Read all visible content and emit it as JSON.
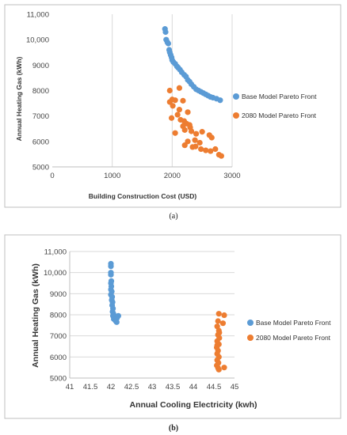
{
  "colors": {
    "base_series": "#5B9BD5",
    "future_series": "#ED7D31",
    "grid": "#d9d9d9",
    "frame": "#bfbfbf"
  },
  "chart_data": [
    {
      "type": "scatter",
      "caption": "(a)",
      "xlabel": "Building Construction Cost (USD)",
      "ylabel": "Annual Heating Gas (kWh)",
      "xlim": [
        0,
        3000
      ],
      "ylim": [
        5000,
        11000
      ],
      "xticks": [
        "0",
        "1000",
        "2000",
        "3000"
      ],
      "yticks": [
        "5000",
        "6000",
        "7000",
        "8000",
        "9000",
        "10,000",
        "11,000"
      ],
      "grid": "vertical",
      "legend": "right",
      "series": [
        {
          "name": "Base Model Pareto Front",
          "color": "#5B9BD5",
          "points": [
            [
              1880,
              10420
            ],
            [
              1890,
              10300
            ],
            [
              1900,
              10000
            ],
            [
              1920,
              9900
            ],
            [
              1935,
              9850
            ],
            [
              1950,
              9600
            ],
            [
              1960,
              9500
            ],
            [
              1975,
              9400
            ],
            [
              1990,
              9300
            ],
            [
              2000,
              9200
            ],
            [
              2020,
              9120
            ],
            [
              2050,
              9050
            ],
            [
              2080,
              8950
            ],
            [
              2100,
              8900
            ],
            [
              2130,
              8820
            ],
            [
              2160,
              8720
            ],
            [
              2200,
              8620
            ],
            [
              2230,
              8550
            ],
            [
              2260,
              8420
            ],
            [
              2290,
              8350
            ],
            [
              2320,
              8250
            ],
            [
              2360,
              8150
            ],
            [
              2400,
              8050
            ],
            [
              2440,
              8000
            ],
            [
              2480,
              7950
            ],
            [
              2520,
              7900
            ],
            [
              2560,
              7850
            ],
            [
              2600,
              7800
            ],
            [
              2640,
              7750
            ],
            [
              2680,
              7720
            ],
            [
              2740,
              7680
            ],
            [
              2800,
              7620
            ]
          ]
        },
        {
          "name": "2080 Model Pareto Front",
          "color": "#ED7D31",
          "points": [
            [
              1960,
              8000
            ],
            [
              2120,
              8100
            ],
            [
              1960,
              7550
            ],
            [
              2000,
              7650
            ],
            [
              2050,
              7620
            ],
            [
              2180,
              7600
            ],
            [
              2010,
              7400
            ],
            [
              2120,
              7250
            ],
            [
              2260,
              7150
            ],
            [
              2090,
              7050
            ],
            [
              1990,
              6920
            ],
            [
              2140,
              6850
            ],
            [
              2200,
              6800
            ],
            [
              2240,
              6700
            ],
            [
              2180,
              6600
            ],
            [
              2290,
              6650
            ],
            [
              2300,
              6550
            ],
            [
              2050,
              6330
            ],
            [
              2210,
              6450
            ],
            [
              2320,
              6400
            ],
            [
              2400,
              6300
            ],
            [
              2500,
              6380
            ],
            [
              2620,
              6250
            ],
            [
              2660,
              6150
            ],
            [
              2260,
              6000
            ],
            [
              2380,
              6050
            ],
            [
              2460,
              5950
            ],
            [
              2210,
              5850
            ],
            [
              2340,
              5780
            ],
            [
              2390,
              5800
            ],
            [
              2480,
              5700
            ],
            [
              2560,
              5650
            ],
            [
              2640,
              5620
            ],
            [
              2720,
              5700
            ],
            [
              2780,
              5480
            ],
            [
              2820,
              5430
            ]
          ]
        }
      ]
    },
    {
      "type": "scatter",
      "caption": "(b)",
      "xlabel": "Annual Cooling Electricity (kwh)",
      "ylabel": "Annual Heating Gas (kWh)",
      "xlim": [
        41,
        45
      ],
      "ylim": [
        5000,
        11000
      ],
      "xticks": [
        "41",
        "41.5",
        "42",
        "42.5",
        "43",
        "43.5",
        "44",
        "44.5",
        "45"
      ],
      "yticks": [
        "5000",
        "6000",
        "7000",
        "8000",
        "9000",
        "10,000",
        "11,000"
      ],
      "grid": "horizontal",
      "legend": "right",
      "series": [
        {
          "name": "Base Model Pareto Front",
          "color": "#5B9BD5",
          "points": [
            [
              42.0,
              10420
            ],
            [
              42.0,
              10300
            ],
            [
              42.0,
              10000
            ],
            [
              42.0,
              9900
            ],
            [
              42.01,
              9600
            ],
            [
              42.0,
              9500
            ],
            [
              42.01,
              9350
            ],
            [
              42.0,
              9200
            ],
            [
              42.02,
              9100
            ],
            [
              42.0,
              8950
            ],
            [
              42.03,
              8850
            ],
            [
              42.02,
              8700
            ],
            [
              42.04,
              8600
            ],
            [
              42.03,
              8450
            ],
            [
              42.05,
              8300
            ],
            [
              42.04,
              8150
            ],
            [
              42.06,
              8050
            ],
            [
              42.05,
              7950
            ],
            [
              42.08,
              7900
            ],
            [
              42.07,
              7800
            ],
            [
              42.1,
              7750
            ],
            [
              42.12,
              7700
            ],
            [
              42.15,
              7850
            ],
            [
              42.18,
              7950
            ],
            [
              42.14,
              7650
            ]
          ]
        },
        {
          "name": "2080 Model Pareto Front",
          "color": "#ED7D31",
          "points": [
            [
              44.62,
              8050
            ],
            [
              44.75,
              7980
            ],
            [
              44.6,
              7700
            ],
            [
              44.72,
              7600
            ],
            [
              44.58,
              7450
            ],
            [
              44.62,
              7250
            ],
            [
              44.6,
              7050
            ],
            [
              44.63,
              6900
            ],
            [
              44.58,
              6750
            ],
            [
              44.62,
              6600
            ],
            [
              44.57,
              6450
            ],
            [
              44.6,
              6300
            ],
            [
              44.58,
              6150
            ],
            [
              44.62,
              6000
            ],
            [
              44.58,
              5850
            ],
            [
              44.61,
              5720
            ],
            [
              44.57,
              5600
            ],
            [
              44.6,
              5480
            ],
            [
              44.75,
              5500
            ],
            [
              44.62,
              5400
            ],
            [
              44.58,
              6550
            ],
            [
              44.63,
              7150
            ]
          ]
        }
      ]
    }
  ]
}
